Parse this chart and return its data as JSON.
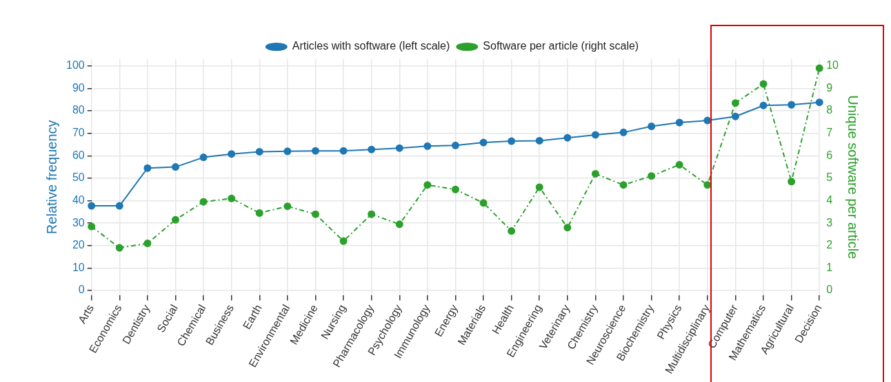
{
  "chart_data": {
    "type": "line",
    "categories": [
      "Arts",
      "Economics",
      "Dentistry",
      "Social",
      "Chemical",
      "Business",
      "Earth",
      "Environmental",
      "Medicine",
      "Nursing",
      "Pharmacology",
      "Psychology",
      "Immunology",
      "Energy",
      "Materials",
      "Health",
      "Engineering",
      "Veterinary",
      "Chemistry",
      "Neuroscience",
      "Biochemistry",
      "Physics",
      "Multidisciplinary",
      "Computer",
      "Mathematics",
      "Agricultural",
      "Decision"
    ],
    "series": [
      {
        "name": "Articles with software (left scale)",
        "color": "#1f77b4",
        "line_style": "solid",
        "values": [
          37.7,
          37.7,
          54.5,
          55,
          59.3,
          60.8,
          61.8,
          62,
          62.2,
          62.2,
          62.8,
          63.4,
          64.3,
          64.6,
          65.9,
          66.5,
          66.7,
          68,
          69.3,
          70.4,
          73.1,
          74.8,
          75.7,
          77.5,
          82.4,
          82.7,
          83.8
        ]
      },
      {
        "name": "Software per article (right scale)",
        "color": "#2ca02c",
        "axis": "y2",
        "line_style": "dashed",
        "values": [
          2.85,
          1.9,
          2.1,
          3.15,
          3.95,
          4.1,
          3.45,
          3.75,
          3.4,
          2.2,
          3.4,
          2.95,
          4.7,
          4.5,
          3.9,
          2.65,
          4.6,
          2.8,
          5.2,
          4.7,
          5.1,
          5.6,
          4.7,
          8.35,
          9.2,
          4.85,
          9.9
        ]
      }
    ],
    "ylabel": "Relative frequency",
    "y2label": "Unique software per article",
    "ylim": [
      -2,
      103
    ],
    "yticks": [
      0,
      10,
      20,
      30,
      40,
      50,
      60,
      70,
      80,
      90,
      100
    ],
    "y2lim": [
      -0.2,
      10.3
    ],
    "y2ticks": [
      0,
      1,
      2,
      3,
      4,
      5,
      6,
      7,
      8,
      9,
      10
    ],
    "grid": true,
    "legend": "top",
    "marker": "circle"
  }
}
